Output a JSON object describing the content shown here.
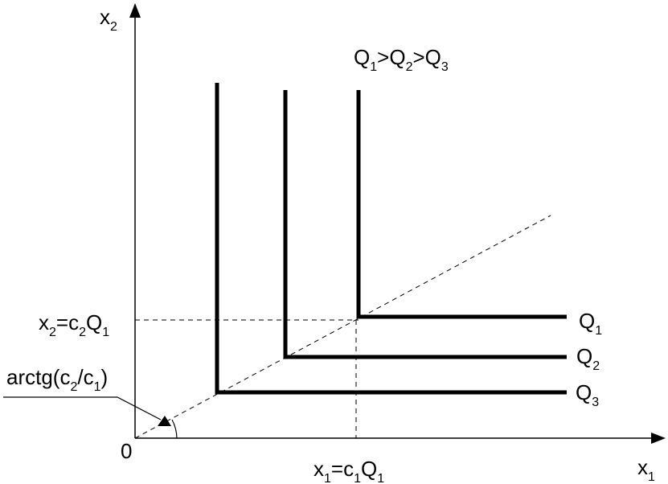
{
  "labels": {
    "y_axis": [
      {
        "text": "x"
      },
      {
        "sub": "2"
      }
    ],
    "x_axis": [
      {
        "text": "x"
      },
      {
        "sub": "1"
      }
    ],
    "origin": [
      {
        "text": "0"
      }
    ],
    "order": [
      {
        "text": "Q"
      },
      {
        "sub": "1"
      },
      {
        "text": ">Q"
      },
      {
        "sub": "2"
      },
      {
        "text": ">Q"
      },
      {
        "sub": "3"
      }
    ],
    "x2_level": [
      {
        "text": "x"
      },
      {
        "sub": "2"
      },
      {
        "text": "=c"
      },
      {
        "sub": "2"
      },
      {
        "text": "Q"
      },
      {
        "sub": "1"
      }
    ],
    "angle": [
      {
        "text": "arctg(c"
      },
      {
        "sub": "2"
      },
      {
        "text": "/c"
      },
      {
        "sub": "1"
      },
      {
        "text": ")"
      }
    ],
    "x1_level": [
      {
        "text": "x"
      },
      {
        "sub": "1"
      },
      {
        "text": "=c"
      },
      {
        "sub": "1"
      },
      {
        "text": "Q"
      },
      {
        "sub": "1"
      }
    ],
    "q1": [
      {
        "text": "Q"
      },
      {
        "sub": "1"
      }
    ],
    "q2": [
      {
        "text": "Q"
      },
      {
        "sub": "2"
      }
    ],
    "q3": [
      {
        "text": "Q"
      },
      {
        "sub": "3"
      }
    ]
  }
}
